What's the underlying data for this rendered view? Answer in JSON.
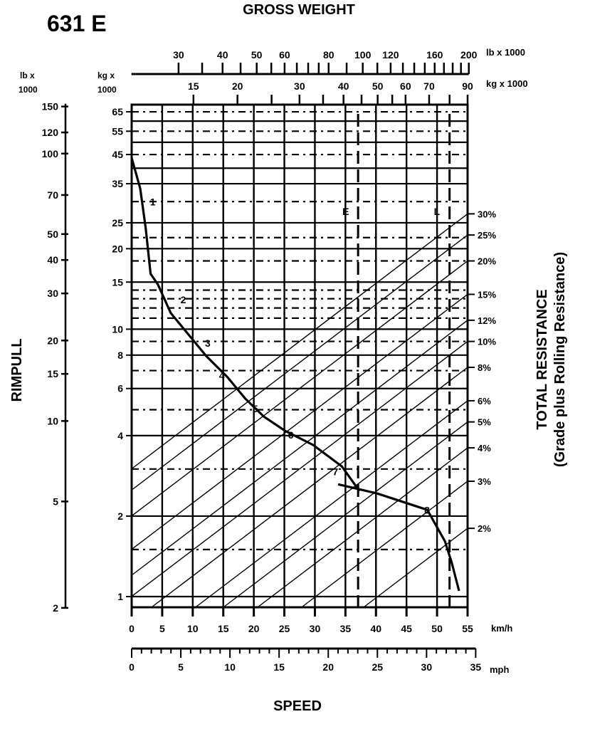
{
  "chart_data": {
    "type": "line",
    "model": "631 E",
    "title": "GROSS WEIGHT",
    "xlabel": "SPEED",
    "ylabel": "RIMPULL",
    "right_label": "TOTAL RESISTANCE",
    "right_sublabel": "(Grade plus Rolling Resistance)",
    "x_unit_kmh": "km/h",
    "x_unit_mph": "mph",
    "weight_unit_lb": "lb x 1000",
    "weight_unit_kg": "kg x 1000",
    "left_unit_lb": [
      "lb x",
      "1000"
    ],
    "left_unit_kg": [
      "kg x",
      "1000"
    ],
    "xlim_kmh": [
      0,
      55
    ],
    "ylim_kg": [
      0.91,
      69
    ],
    "y_scale": "log",
    "weight_kg_range": [
      10,
      90
    ],
    "weight_scale": "log",
    "kmh_ticks": [
      "0",
      "5",
      "10",
      "15",
      "20",
      "25",
      "30",
      "35",
      "40",
      "45",
      "50",
      "55"
    ],
    "mph_ticks": [
      "0",
      "5",
      "10",
      "15",
      "20",
      "25",
      "30",
      "35"
    ],
    "kg_ticks": [
      "65",
      "55",
      "45",
      "35",
      "25",
      "20",
      "15",
      "10",
      "8",
      "6",
      "4",
      "2",
      "1"
    ],
    "lb_ticks": [
      "150",
      "120",
      "100",
      "70",
      "50",
      "40",
      "30",
      "20",
      "15",
      "10",
      "5",
      "2"
    ],
    "weight_lb_labels": [
      "30",
      "40",
      "50",
      "60",
      "80",
      "100",
      "120",
      "160",
      "200"
    ],
    "weight_kg_labels": [
      "15",
      "20",
      "30",
      "40",
      "50",
      "60",
      "70",
      "90"
    ],
    "resistance_labels": [
      "30%",
      "25%",
      "20%",
      "15%",
      "12%",
      "10%",
      "8%",
      "6%",
      "5%",
      "4%",
      "3%",
      "2%"
    ],
    "resistance_values": [
      30,
      25,
      20,
      15,
      12,
      10,
      8,
      6,
      5,
      4,
      3,
      2
    ],
    "grid_solid_kg": [
      1,
      2,
      4,
      6,
      8,
      10,
      15,
      20,
      25,
      35,
      40,
      50,
      60
    ],
    "grid_dashed_kg": [
      1.5,
      3,
      5,
      7,
      9,
      11,
      12,
      13,
      14,
      18,
      22,
      30,
      45,
      55,
      65
    ],
    "weight_markers": [
      {
        "label": "E",
        "weight_kg": 44
      },
      {
        "label": "L",
        "weight_kg": 80
      }
    ],
    "series": [
      {
        "points": [
          [
            0,
            43.7
          ],
          [
            1.4,
            33.6
          ],
          [
            2.3,
            23.9
          ],
          [
            3.1,
            16.1
          ],
          [
            4.3,
            14.7
          ],
          [
            6.4,
            11.5
          ],
          [
            9.3,
            9.55
          ],
          [
            12.2,
            7.94
          ],
          [
            15.7,
            6.61
          ],
          [
            18.6,
            5.5
          ],
          [
            21.6,
            4.72
          ],
          [
            25.1,
            4.17
          ],
          [
            29.7,
            3.69
          ],
          [
            34.4,
            3.07
          ],
          [
            37.3,
            2.48
          ]
        ]
      },
      {
        "points": [
          [
            33.8,
            2.63
          ],
          [
            40.2,
            2.43
          ],
          [
            48.4,
            2.11
          ],
          [
            51.3,
            1.61
          ],
          [
            52.4,
            1.34
          ],
          [
            53.6,
            1.05
          ]
        ]
      }
    ],
    "gears": [
      {
        "label": "1",
        "speed": 3,
        "rimpull": 29
      },
      {
        "label": "2",
        "speed": 8,
        "rimpull": 12.5
      },
      {
        "label": "3",
        "speed": 12,
        "rimpull": 8.6
      },
      {
        "label": "4",
        "speed": 14.3,
        "rimpull": 6.5
      },
      {
        "label": "5",
        "speed": 19.8,
        "rimpull": 4.9
      },
      {
        "label": "6",
        "speed": 25.6,
        "rimpull": 3.9
      },
      {
        "label": "7",
        "speed": 32.9,
        "rimpull": 2.84
      },
      {
        "label": "8",
        "speed": 47.9,
        "rimpull": 2.04
      }
    ],
    "grid": true
  }
}
